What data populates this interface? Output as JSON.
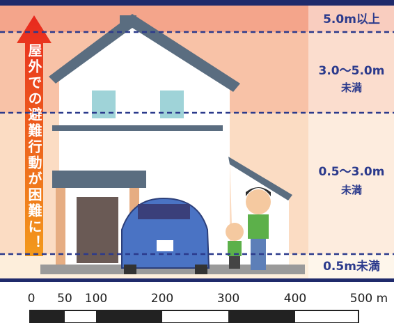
{
  "arrow_text": "屋外での避難行動が困難に！",
  "levels": [
    {
      "label": "5.0m以上"
    },
    {
      "label": "3.0～5.0m",
      "sub": "未満"
    },
    {
      "label": "0.5～3.0m",
      "sub": "未満"
    },
    {
      "label": "0.5m未満"
    }
  ],
  "scale": {
    "labels": [
      "0",
      "50",
      "100",
      "200",
      "300",
      "400",
      "500 m"
    ]
  }
}
